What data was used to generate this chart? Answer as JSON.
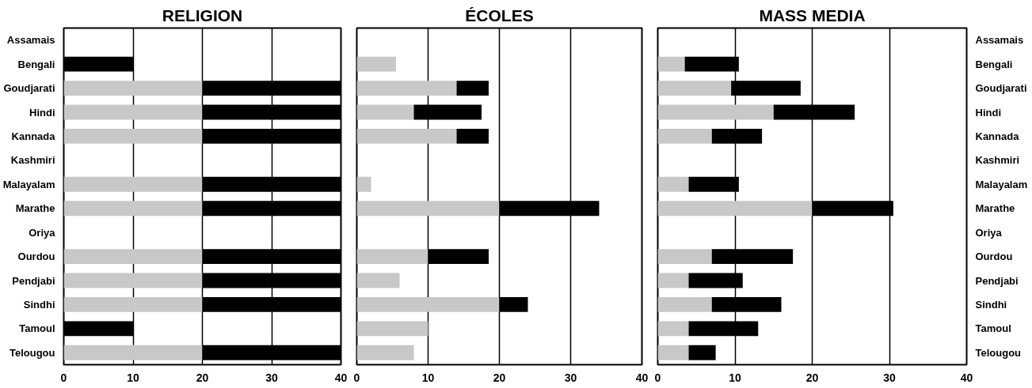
{
  "chart_data": [
    {
      "type": "bar",
      "orientation": "horizontal",
      "stacked": true,
      "title": "RELIGION",
      "categories": [
        "Assamais",
        "Bengali",
        "Goudjarati",
        "Hindi",
        "Kannada",
        "Kashmiri",
        "Malayalam",
        "Marathe",
        "Oriya",
        "Ourdou",
        "Pendjabi",
        "Sindhi",
        "Tamoul",
        "Telougou"
      ],
      "series": [
        {
          "color": "#c8c8c8",
          "values": [
            0,
            0,
            20,
            20,
            20,
            0,
            20,
            20,
            0,
            20,
            20,
            20,
            0,
            20
          ]
        },
        {
          "color": "#000000",
          "values": [
            0,
            10,
            20,
            20,
            20,
            0,
            20,
            20,
            0,
            20,
            20,
            20,
            10,
            20
          ]
        }
      ],
      "xlim": [
        0,
        40
      ],
      "xticks": [
        0,
        10,
        20,
        30,
        40
      ],
      "grid": "x"
    },
    {
      "type": "bar",
      "orientation": "horizontal",
      "stacked": true,
      "title": "ÉCOLES",
      "categories": [
        null,
        null,
        null,
        null,
        null,
        null,
        null,
        null,
        null,
        null,
        null,
        null,
        null,
        null
      ],
      "series": [
        {
          "color": "#c8c8c8",
          "values": [
            0,
            5.5,
            14,
            8,
            14,
            0,
            2,
            20,
            0,
            10,
            6,
            20,
            10,
            8
          ]
        },
        {
          "color": "#000000",
          "values": [
            0,
            0,
            4.5,
            9.5,
            4.5,
            0,
            0,
            14,
            0,
            8.5,
            0,
            4,
            0,
            0
          ]
        }
      ],
      "xlim": [
        0,
        40
      ],
      "xticks": [
        0,
        10,
        20,
        30,
        40
      ],
      "grid": "x",
      "tick_labels": "x"
    },
    {
      "type": "bar",
      "orientation": "horizontal",
      "stacked": true,
      "title": "MASS MEDIA",
      "categories": [
        "Assamais",
        "Bengali",
        "Goudjarati",
        "Hindi",
        "Kannada",
        "Kashmiri",
        "Malayalam",
        "Marathe",
        "Oriya",
        "Ourdou",
        "Pendjabi",
        "Sindhi",
        "Tamoul",
        "Telougou"
      ],
      "series": [
        {
          "color": "#c8c8c8",
          "values": [
            0,
            3.5,
            9.5,
            15,
            7,
            0,
            4,
            20,
            0,
            7,
            4,
            7,
            4,
            4
          ]
        },
        {
          "color": "#000000",
          "values": [
            0,
            7,
            9,
            10.5,
            6.5,
            0,
            6.5,
            10.5,
            0,
            10.5,
            7,
            9,
            9,
            3.5
          ]
        }
      ],
      "xlim": [
        0,
        40
      ],
      "xticks": [
        0,
        10,
        20,
        30,
        40
      ],
      "grid": "x"
    }
  ]
}
